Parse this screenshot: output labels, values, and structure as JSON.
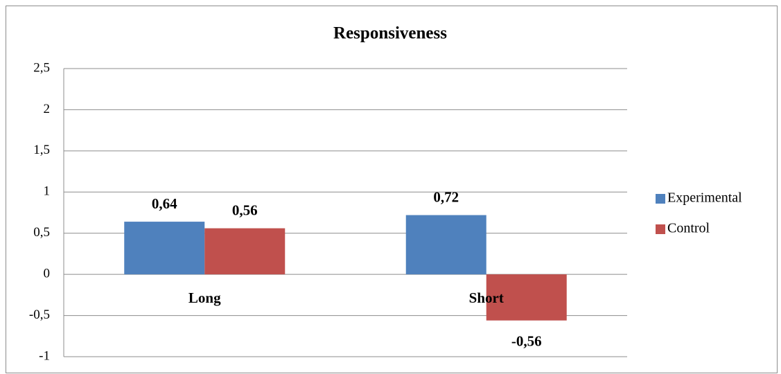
{
  "chart_data": {
    "type": "bar",
    "title": "Responsiveness",
    "categories": [
      "Long",
      "Short"
    ],
    "series": [
      {
        "name": "Experimental",
        "color": "#4f81bd",
        "values": [
          0.64,
          0.72
        ],
        "value_labels": [
          "0,64",
          "0,72"
        ]
      },
      {
        "name": "Control",
        "color": "#c0504d",
        "values": [
          0.56,
          -0.56
        ],
        "value_labels": [
          "0,56",
          "-0,56"
        ]
      }
    ],
    "ylim": [
      -1,
      2.5
    ],
    "yticks": [
      -1,
      {
        "value": -0.5,
        "label": "-0,5"
      },
      0,
      {
        "value": 0.5,
        "label": "0,5"
      },
      1,
      {
        "value": 1.5,
        "label": "1,5"
      },
      2,
      {
        "value": 2.5,
        "label": "2,5"
      }
    ],
    "grid": true,
    "legend": "right"
  }
}
